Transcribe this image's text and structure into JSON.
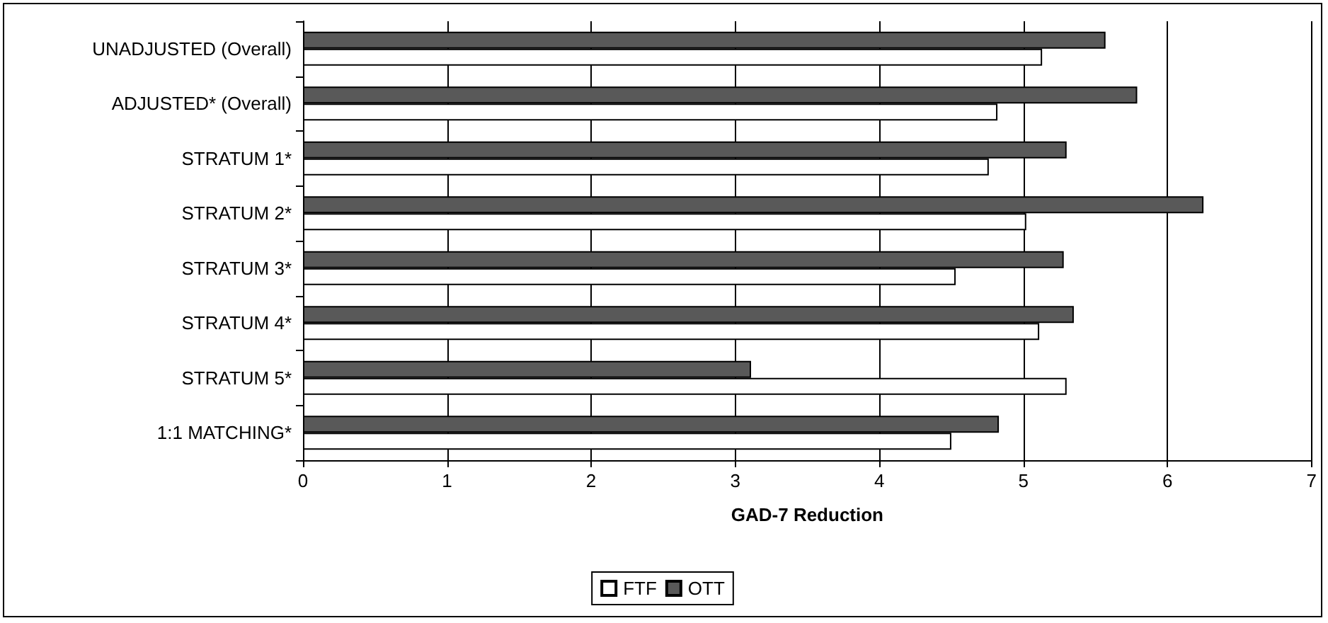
{
  "chart_data": {
    "type": "bar",
    "orientation": "horizontal",
    "xlabel": "GAD-7 Reduction",
    "categories": [
      "UNADJUSTED (Overall)",
      "ADJUSTED* (Overall)",
      "STRATUM 1*",
      "STRATUM 2*",
      "STRATUM 3*",
      "STRATUM 4*",
      "STRATUM 5*",
      "1:1 MATCHING*"
    ],
    "series": [
      {
        "name": "FTF",
        "color": "#ffffff",
        "values": [
          5.13,
          4.82,
          4.76,
          5.02,
          4.53,
          5.11,
          5.3,
          4.5
        ]
      },
      {
        "name": "OTT",
        "color": "#595959",
        "values": [
          5.57,
          5.79,
          5.3,
          6.25,
          5.28,
          5.35,
          3.11,
          4.83
        ]
      }
    ],
    "xlim": [
      0,
      7
    ],
    "xticks": [
      0,
      1,
      2,
      3,
      4,
      5,
      6,
      7
    ],
    "grid": "x",
    "legend": "bottom"
  }
}
